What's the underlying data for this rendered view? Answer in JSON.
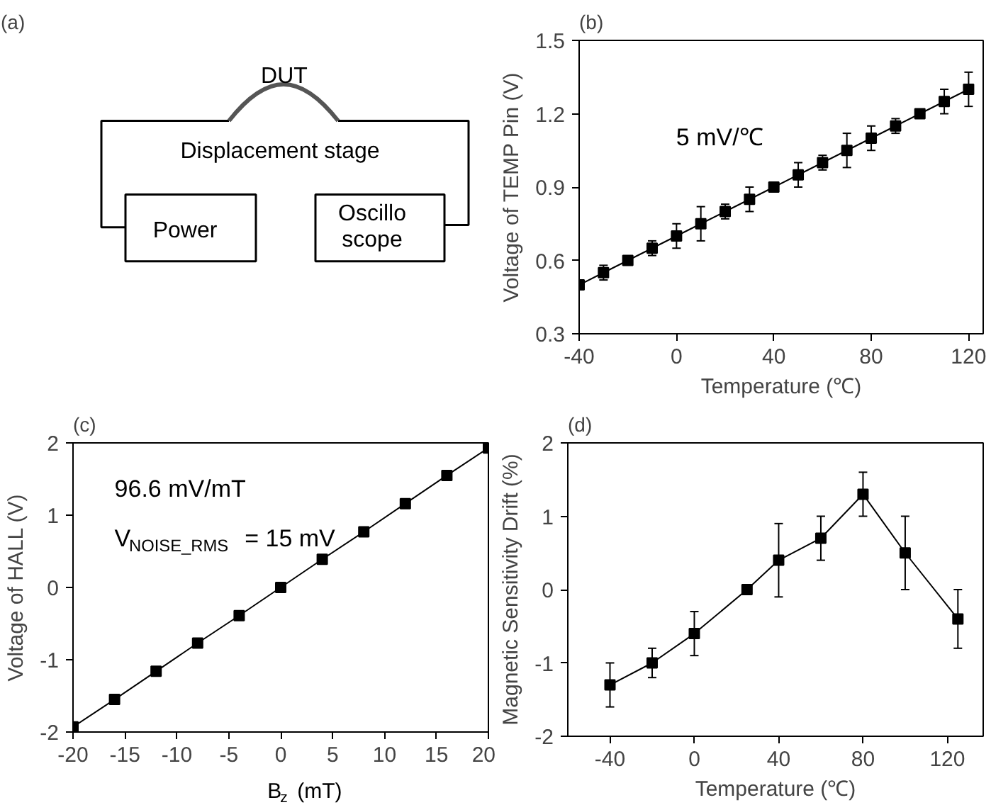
{
  "chart_data": [
    {
      "type": "other",
      "title": "(a)",
      "annotations": [
        "DUT",
        "Displacement stage",
        "Power",
        "Oscillo\nscope"
      ]
    },
    {
      "type": "line",
      "title": "(b)",
      "xlabel": "Temperature (℃)",
      "ylabel": "Voltage of TEMP Pin (V)",
      "marker": "square",
      "line_style": "solid",
      "grid": false,
      "x": [
        -40,
        -30,
        -20,
        -10,
        0,
        10,
        20,
        30,
        40,
        50,
        60,
        70,
        80,
        90,
        100,
        110,
        120
      ],
      "series": [
        {
          "color": "#000000",
          "values": [
            0.5,
            0.55,
            0.6,
            0.65,
            0.7,
            0.75,
            0.8,
            0.85,
            0.9,
            0.95,
            1.0,
            1.05,
            1.1,
            1.15,
            1.2,
            1.25,
            1.3
          ],
          "errors": [
            null,
            0.03,
            null,
            0.03,
            0.05,
            0.07,
            0.03,
            0.05,
            null,
            0.05,
            0.03,
            0.07,
            0.05,
            0.03,
            null,
            0.05,
            0.07
          ]
        }
      ],
      "xlim": [
        -40,
        126
      ],
      "xticks": [
        -40,
        0,
        40,
        80,
        120
      ],
      "ylim": [
        0.3,
        1.5
      ],
      "yticks": [
        0.3,
        0.6,
        0.9,
        1.2,
        1.5
      ],
      "annotations": [
        "5 mV/℃"
      ]
    },
    {
      "type": "line",
      "title": "(c)",
      "xlabel": "B$_{z}$ (mT)",
      "ylabel": "Voltage of HALL (V)",
      "marker": "square",
      "line_style": "solid",
      "grid": false,
      "x": [
        -20,
        -16,
        -12,
        -8,
        -4,
        0,
        4,
        8,
        12,
        16,
        20
      ],
      "series": [
        {
          "color": "#000000",
          "values": [
            -1.93,
            -1.55,
            -1.16,
            -0.77,
            -0.39,
            0,
            0.39,
            0.77,
            1.16,
            1.55,
            1.93
          ]
        }
      ],
      "xlim": [
        -20,
        20
      ],
      "xticks": [
        -20,
        -15,
        -10,
        -5,
        0,
        5,
        10,
        15,
        20
      ],
      "ylim": [
        -2,
        2
      ],
      "yticks": [
        -2,
        -1,
        0,
        1,
        2
      ],
      "annotations": [
        "96.6 mV/mT",
        "V$_{NOISE_RMS}$ = 15 mV"
      ]
    },
    {
      "type": "line",
      "title": "(d)",
      "xlabel": "Temperature (℃)",
      "ylabel": "Magnetic Sensitivity Drift (%)",
      "marker": "square",
      "line_style": "solid",
      "grid": false,
      "x": [
        -40,
        -20,
        0,
        25,
        40,
        60,
        80,
        100,
        125
      ],
      "series": [
        {
          "color": "#000000",
          "values": [
            -1.3,
            -1.0,
            -0.6,
            0,
            0.4,
            0.7,
            1.3,
            0.5,
            -0.4
          ],
          "errors": [
            0.3,
            0.2,
            0.3,
            null,
            0.5,
            0.3,
            0.3,
            0.5,
            0.4
          ]
        }
      ],
      "xlim": [
        -60,
        137
      ],
      "xticks": [
        -40,
        0,
        40,
        80,
        120
      ],
      "ylim": [
        -2,
        2
      ],
      "yticks": [
        -2,
        -1,
        0,
        1,
        2
      ]
    }
  ]
}
